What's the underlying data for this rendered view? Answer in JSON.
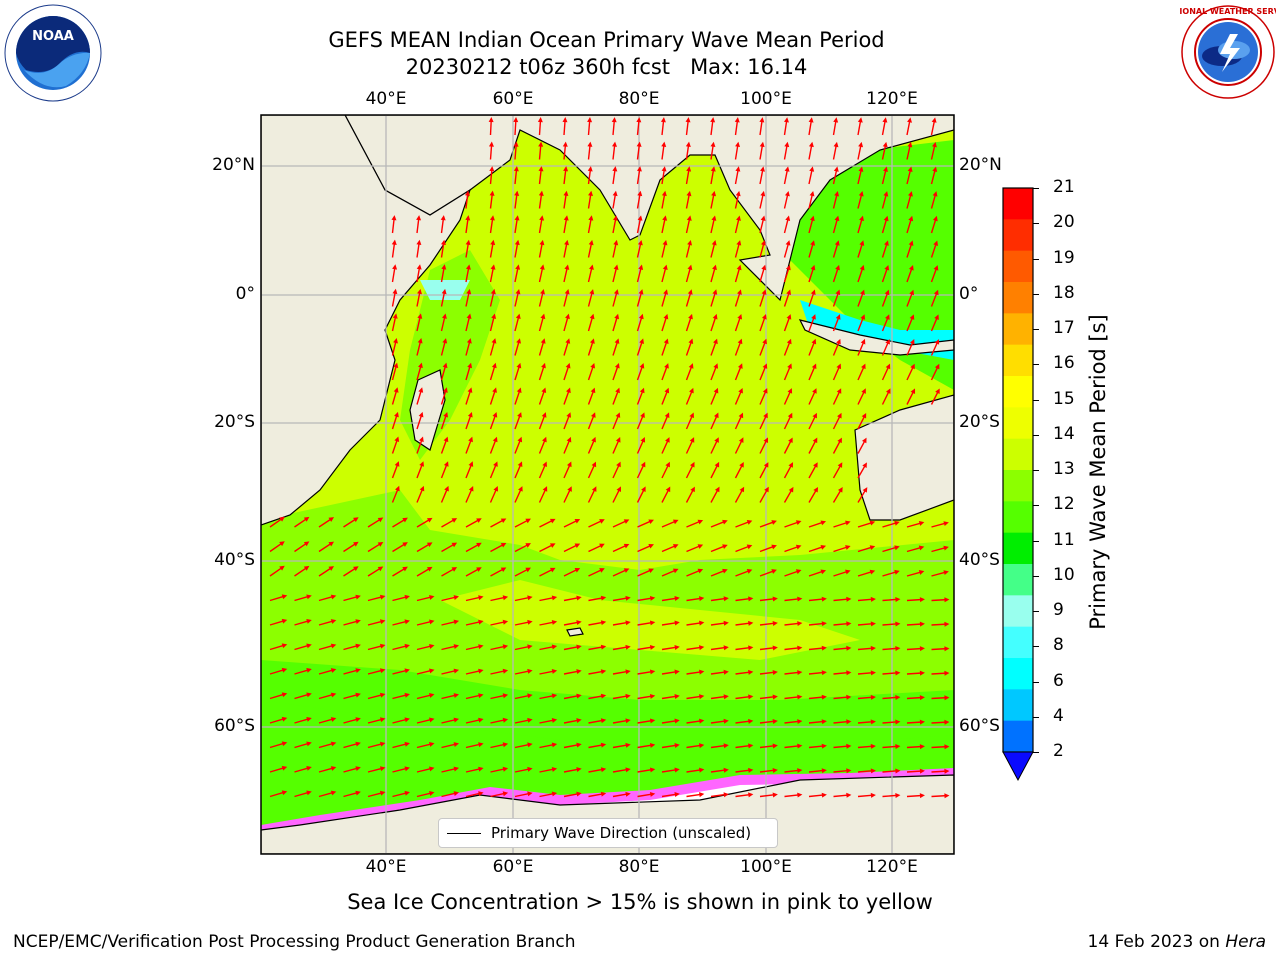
{
  "header": {
    "title_line1": "GEFS MEAN Indian Ocean Primary Wave Mean Period",
    "title_line2": "20230212 t06z 360h fcst   Max: 16.14"
  },
  "logos": {
    "left": "NOAA",
    "left_ring_text": "NATIONAL OCEANIC AND ATMOSPHERIC ADMINISTRATION · U.S. DEPARTMENT OF COMMERCE",
    "right_ring_text": "NATIONAL WEATHER SERVICE"
  },
  "map": {
    "top_lon_labels": [
      "40°E",
      "60°E",
      "80°E",
      "100°E",
      "120°E"
    ],
    "bottom_lon_labels": [
      "40°E",
      "60°E",
      "80°E",
      "100°E",
      "120°E"
    ],
    "left_lat_labels": [
      "20°N",
      "0°",
      "20°S",
      "40°S",
      "60°S"
    ],
    "right_lat_labels": [
      "20°N",
      "0°",
      "20°S",
      "40°S",
      "60°S"
    ],
    "legend_label": "Primary Wave Direction (unscaled)",
    "colors": {
      "land": "#efedde",
      "grid": "#b8b8b8",
      "arrow": "#ff0000",
      "coast": "#000000"
    }
  },
  "colorbar": {
    "label": "Primary Wave Mean Period [s]",
    "ticks": [
      "21",
      "20",
      "19",
      "18",
      "17",
      "16",
      "15",
      "14",
      "13",
      "12",
      "11",
      "10",
      "9",
      "8",
      "6",
      "4",
      "2"
    ],
    "colors_top_to_bottom": [
      "#ff0000",
      "#ff2d00",
      "#ff5a00",
      "#ff8000",
      "#ffb200",
      "#ffde00",
      "#ffff00",
      "#eeff00",
      "#ccff00",
      "#8cff00",
      "#55ff00",
      "#00ee00",
      "#44ff88",
      "#99ffee",
      "#44ffff",
      "#00ffff",
      "#00c8ff",
      "#0072ff"
    ],
    "extend_color": "#0a0aff"
  },
  "caption": "Sea Ice Concentration > 15% is shown in pink to yellow",
  "footer": {
    "left": "NCEP/EMC/Verification Post Processing Product Generation Branch",
    "right_date": "14 Feb 2023 on ",
    "right_machine": "Hera"
  }
}
